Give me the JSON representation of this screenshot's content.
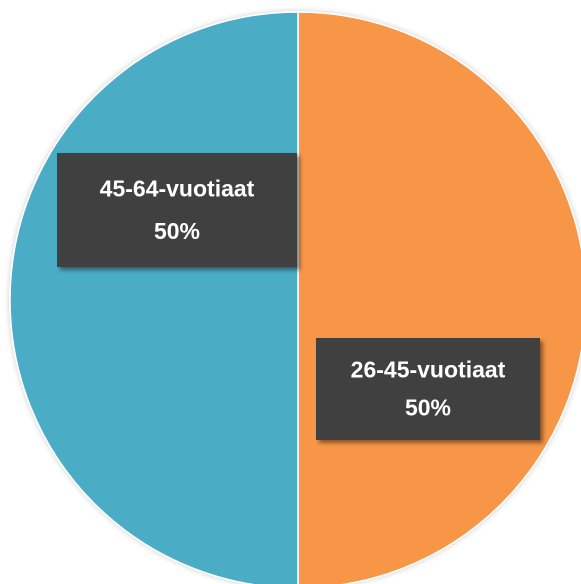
{
  "chart_data": {
    "type": "pie",
    "categories": [
      "26-45-vuotiaat",
      "45-64-vuotiaat"
    ],
    "values": [
      50,
      50
    ],
    "value_labels": [
      "50%",
      "50%"
    ],
    "colors": [
      "#f79646",
      "#4bacc6"
    ]
  }
}
